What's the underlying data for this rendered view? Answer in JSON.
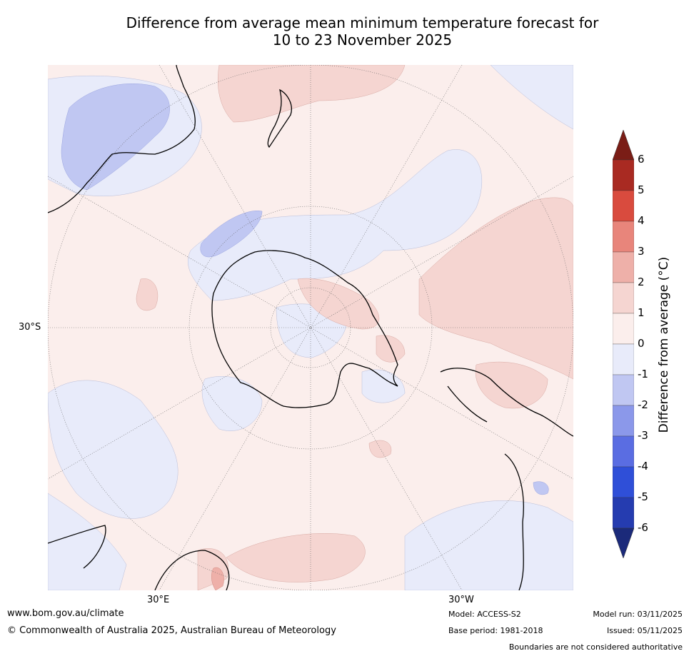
{
  "title": {
    "line1": "Difference from average mean minimum temperature forecast for",
    "line2": "10 to 23 November 2025"
  },
  "axis_labels": {
    "lat": "30°S",
    "lon_east": "30°E",
    "lon_west": "30°W"
  },
  "colorbar": {
    "label": "Difference from average (°C)",
    "ticks": [
      "6",
      "5",
      "4",
      "3",
      "2",
      "1",
      "0",
      "-1",
      "-2",
      "-3",
      "-4",
      "-5",
      "-6"
    ],
    "colors": {
      "above_6": "#7a1d16",
      "5_to_6": "#a92a22",
      "4_to_5": "#d94b3e",
      "3_to_4": "#e8857b",
      "2_to_3": "#eeb0a9",
      "1_to_2": "#f5d5d1",
      "0_to_1": "#fbeeec",
      "m1_to_0": "#e8ebfa",
      "m2_to_m1": "#c0c7f2",
      "m3_to_m2": "#8b98ea",
      "m4_to_m3": "#5a6de2",
      "m5_to_m4": "#2f4fd8",
      "m6_to_m5": "#253cb0",
      "below_m6": "#1b2a7a"
    }
  },
  "footer": {
    "website": "www.bom.gov.au/climate",
    "copyright": "© Commonwealth of Australia 2025, Australian Bureau of Meteorology",
    "model": "Model: ACCESS-S2",
    "base_period": "Base period: 1981-2018",
    "model_run": "Model run: 03/11/2025",
    "issued": "Issued: 05/11/2025",
    "disclaimer": "Boundaries are not considered authoritative"
  }
}
